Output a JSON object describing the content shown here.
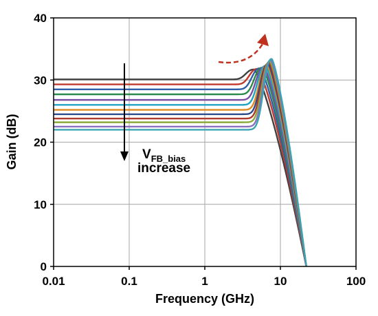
{
  "chart_data": {
    "type": "line",
    "x_scale": "log",
    "xlabel": "Frequency (GHz)",
    "ylabel": "Gain (dB)",
    "xlim": [
      0.01,
      100
    ],
    "ylim": [
      0,
      40
    ],
    "x_ticks": [
      0.01,
      0.1,
      1,
      10,
      100
    ],
    "x_tick_labels": [
      "0.01",
      "0.1",
      "1",
      "10",
      "100"
    ],
    "y_ticks": [
      0,
      10,
      20,
      30,
      40
    ],
    "y_tick_labels": [
      "0",
      "10",
      "20",
      "30",
      "40"
    ],
    "grid": true,
    "legend": "none",
    "annotation": {
      "main": "V",
      "subscript": "FB_bias",
      "line2": "increase",
      "arrow_direction": "down"
    },
    "peak_trend_arrow": {
      "color": "#c0301e",
      "direction": "up-right"
    },
    "series": [
      {
        "color": "#404040",
        "low_freq_gain": 30.1,
        "peak_freq": 4.5,
        "peak_gain": 31.7,
        "zero_crossing": 22
      },
      {
        "color": "#c0392b",
        "low_freq_gain": 29.3,
        "peak_freq": 5.0,
        "peak_gain": 31.8,
        "zero_crossing": 22
      },
      {
        "color": "#2e5fa8",
        "low_freq_gain": 28.5,
        "peak_freq": 5.4,
        "peak_gain": 31.9,
        "zero_crossing": 22
      },
      {
        "color": "#2a8a4a",
        "low_freq_gain": 27.7,
        "peak_freq": 5.8,
        "peak_gain": 32.0,
        "zero_crossing": 22
      },
      {
        "color": "#7b4ea3",
        "low_freq_gain": 26.8,
        "peak_freq": 6.1,
        "peak_gain": 32.1,
        "zero_crossing": 22
      },
      {
        "color": "#1fa3c2",
        "low_freq_gain": 26.0,
        "peak_freq": 6.4,
        "peak_gain": 32.3,
        "zero_crossing": 22
      },
      {
        "color": "#e08a1e",
        "low_freq_gain": 25.2,
        "peak_freq": 6.7,
        "peak_gain": 32.4,
        "zero_crossing": 22
      },
      {
        "color": "#2f4a8a",
        "low_freq_gain": 24.5,
        "peak_freq": 6.9,
        "peak_gain": 32.6,
        "zero_crossing": 22
      },
      {
        "color": "#b03a2e",
        "low_freq_gain": 23.8,
        "peak_freq": 7.1,
        "peak_gain": 32.8,
        "zero_crossing": 22
      },
      {
        "color": "#8aab3a",
        "low_freq_gain": 23.2,
        "peak_freq": 7.3,
        "peak_gain": 33.0,
        "zero_crossing": 22
      },
      {
        "color": "#8a6fc0",
        "low_freq_gain": 22.5,
        "peak_freq": 7.5,
        "peak_gain": 33.2,
        "zero_crossing": 22
      },
      {
        "color": "#3aa5b0",
        "low_freq_gain": 22.0,
        "peak_freq": 7.7,
        "peak_gain": 33.4,
        "zero_crossing": 22
      }
    ]
  }
}
